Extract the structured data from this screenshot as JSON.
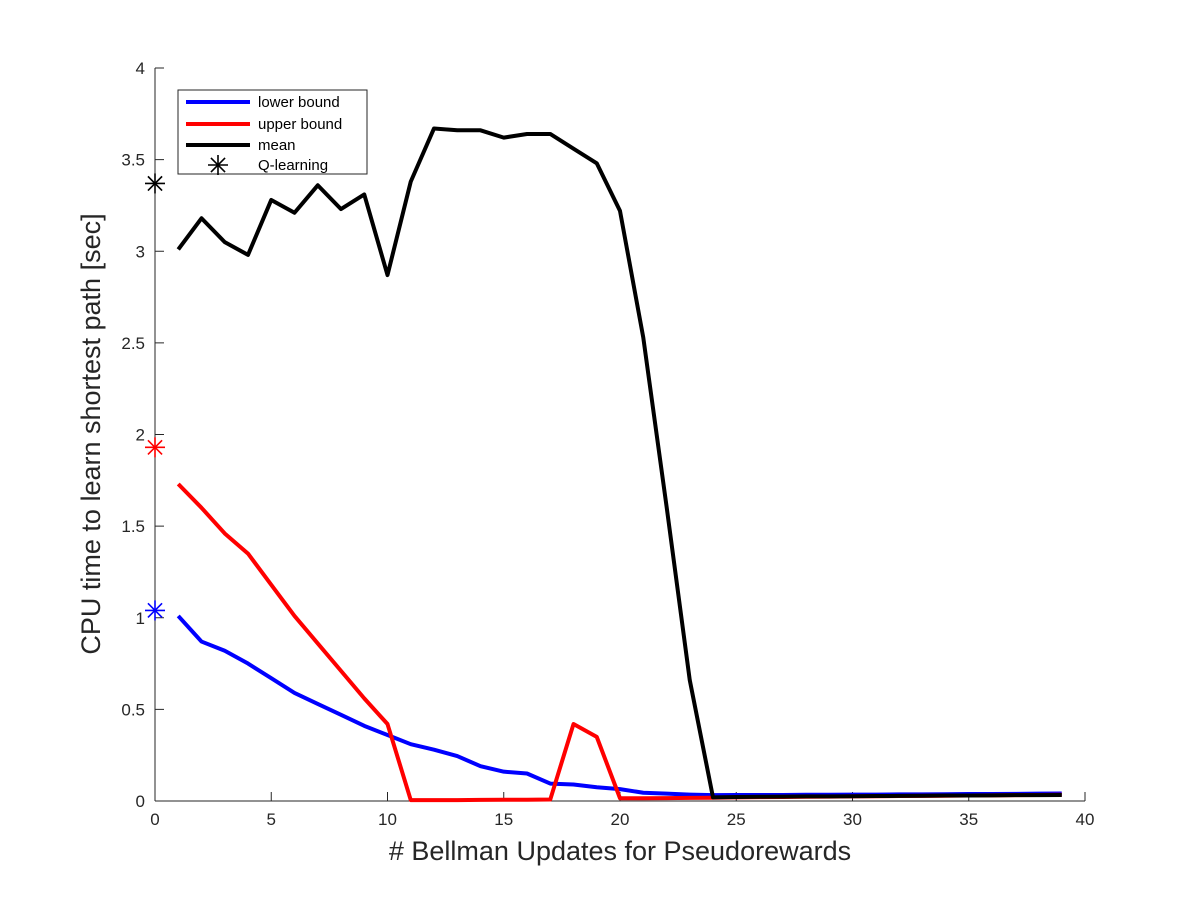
{
  "chart_data": {
    "type": "line",
    "xlabel": "# Bellman Updates for Pseudorewards",
    "ylabel": "CPU time to learn shortest path [sec]",
    "xlim": [
      0,
      40
    ],
    "ylim": [
      0,
      4
    ],
    "xticks": [
      0,
      5,
      10,
      15,
      20,
      25,
      30,
      35,
      40
    ],
    "yticks": [
      0,
      0.5,
      1,
      1.5,
      2,
      2.5,
      3,
      3.5,
      4
    ],
    "grid": false,
    "legend_position": "top-left",
    "x": [
      1,
      2,
      3,
      4,
      5,
      6,
      7,
      8,
      9,
      10,
      11,
      12,
      13,
      14,
      15,
      16,
      17,
      18,
      19,
      20,
      21,
      22,
      23,
      24,
      25,
      26,
      27,
      28,
      29,
      30,
      31,
      32,
      33,
      34,
      35,
      36,
      37,
      38,
      39
    ],
    "series": [
      {
        "name": "lower bound",
        "color": "#0000ff",
        "values": [
          1.01,
          0.87,
          0.82,
          0.75,
          0.67,
          0.59,
          0.53,
          0.47,
          0.41,
          0.36,
          0.31,
          0.28,
          0.245,
          0.19,
          0.16,
          0.15,
          0.095,
          0.09,
          0.075,
          0.065,
          0.045,
          0.04,
          0.035,
          0.032,
          0.033,
          0.033,
          0.033,
          0.034,
          0.034,
          0.035,
          0.035,
          0.036,
          0.036,
          0.037,
          0.038,
          0.038,
          0.039,
          0.04,
          0.041
        ]
      },
      {
        "name": "upper bound",
        "color": "#ff0000",
        "values": [
          1.73,
          1.6,
          1.46,
          1.35,
          1.18,
          1.01,
          0.86,
          0.71,
          0.56,
          0.42,
          0.005,
          0.005,
          0.005,
          0.006,
          0.007,
          0.007,
          0.008,
          0.42,
          0.35,
          0.015,
          0.015,
          0.016,
          0.017,
          0.018,
          0.02,
          0.021,
          0.022,
          0.023,
          0.024,
          0.025,
          0.026,
          0.027,
          0.028,
          0.029,
          0.03,
          0.031,
          0.032,
          0.033,
          0.034
        ]
      },
      {
        "name": "mean",
        "color": "#000000",
        "values": [
          3.01,
          3.18,
          3.05,
          2.98,
          3.28,
          3.21,
          3.36,
          3.23,
          3.31,
          2.87,
          3.38,
          3.67,
          3.66,
          3.66,
          3.62,
          3.64,
          3.64,
          3.56,
          3.48,
          3.22,
          2.53,
          1.61,
          0.66,
          0.02,
          0.022,
          0.023,
          0.024,
          0.025,
          0.025,
          0.026,
          0.027,
          0.028,
          0.029,
          0.03,
          0.03,
          0.031,
          0.032,
          0.032,
          0.033
        ]
      }
    ],
    "q_learning": {
      "name": "Q-learning",
      "x": 0,
      "points": [
        {
          "y": 3.37,
          "color": "#000000"
        },
        {
          "y": 1.93,
          "color": "#ff0000"
        },
        {
          "y": 1.04,
          "color": "#0000ff"
        }
      ]
    }
  }
}
